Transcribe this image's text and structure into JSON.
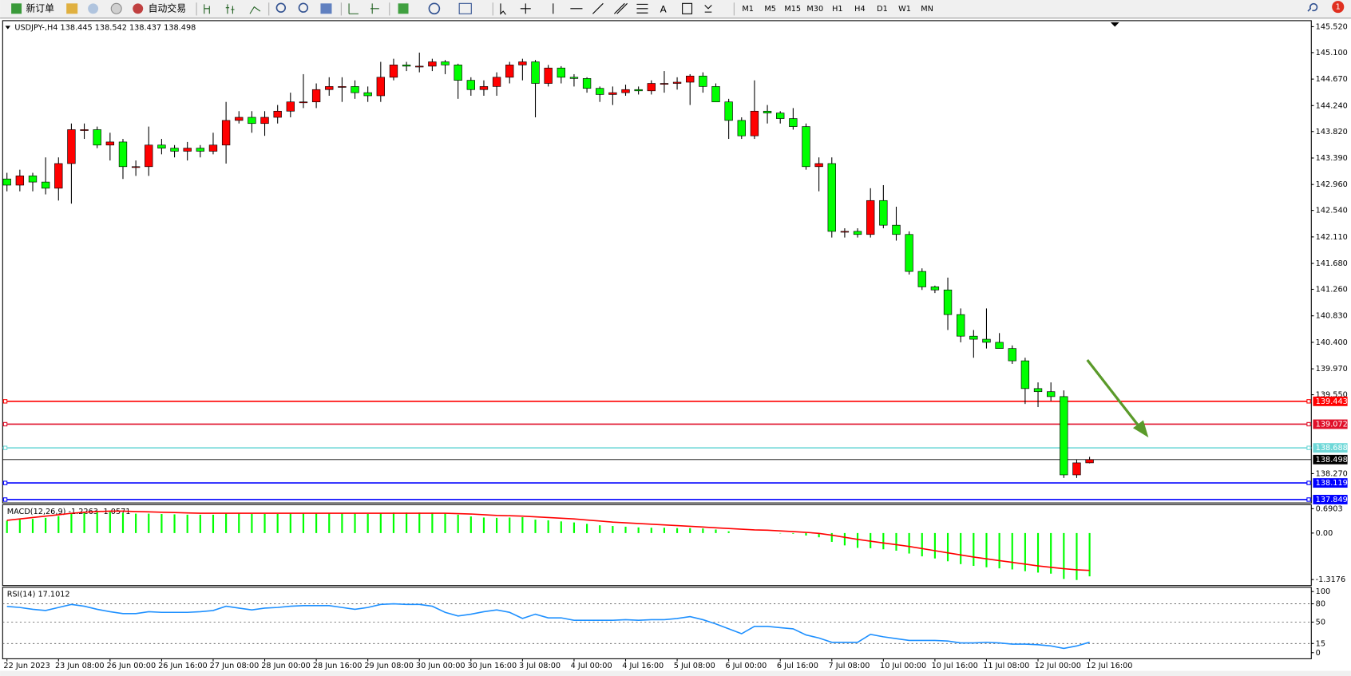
{
  "toolbar": {
    "new_order": "新订单",
    "auto_trading": "自动交易",
    "timeframes": [
      "M1",
      "M5",
      "M15",
      "M30",
      "H1",
      "H4",
      "D1",
      "W1",
      "MN"
    ],
    "notifications": "1"
  },
  "chart_data": [
    {
      "type": "candlestick",
      "title": "USDJPY-,H4  138.445 138.542 138.437 138.498",
      "categories": [
        "22 Jun 2023",
        null,
        null,
        null,
        "23 Jun 08:00",
        null,
        null,
        null,
        "26 Jun 00:00",
        null,
        null,
        null,
        "26 Jun 16:00",
        null,
        null,
        null,
        "27 Jun 08:00",
        null,
        null,
        null,
        "28 Jun 00:00",
        null,
        null,
        null,
        "28 Jun 16:00",
        null,
        null,
        null,
        "29 Jun 08:00",
        null,
        null,
        null,
        "30 Jun 00:00",
        null,
        null,
        null,
        "30 Jun 16:00",
        null,
        null,
        null,
        "3 Jul 08:00",
        null,
        null,
        null,
        "4 Jul 00:00",
        null,
        null,
        null,
        "4 Jul 16:00",
        null,
        null,
        null,
        "5 Jul 08:00",
        null,
        null,
        null,
        "6 Jul 00:00",
        null,
        null,
        null,
        "6 Jul 16:00",
        null,
        null,
        null,
        "7 Jul 08:00",
        null,
        null,
        null,
        "10 Jul 00:00",
        null,
        null,
        null,
        "10 Jul 16:00",
        null,
        null,
        null,
        "11 Jul 08:00",
        null,
        null,
        null,
        "12 Jul 00:00",
        null,
        null,
        null,
        "12 Jul 16:00"
      ],
      "open": [
        143.05,
        142.95,
        143.1,
        143.0,
        142.9,
        143.3,
        143.85,
        143.85,
        143.6,
        143.65,
        143.25,
        143.25,
        143.6,
        143.55,
        143.5,
        143.55,
        143.5,
        143.6,
        144.0,
        144.05,
        143.95,
        144.05,
        144.15,
        144.3,
        144.3,
        144.5,
        144.55,
        144.55,
        144.45,
        144.4,
        144.7,
        144.9,
        144.88,
        144.88,
        144.95,
        144.9,
        144.65,
        144.5,
        144.55,
        144.7,
        144.9,
        144.95,
        144.6,
        144.85,
        144.7,
        144.68,
        144.52,
        144.42,
        144.45,
        144.5,
        144.48,
        144.6,
        144.6,
        144.62,
        144.72,
        144.55,
        144.3,
        144.0,
        143.75,
        144.15,
        144.12,
        144.03,
        143.9,
        143.25,
        143.3,
        142.2,
        142.2,
        142.15,
        142.7,
        142.3,
        142.15,
        141.55,
        141.3,
        141.25,
        140.85,
        140.5,
        140.45,
        140.4,
        140.3,
        140.1,
        139.65,
        139.6,
        139.52,
        138.25,
        138.445
      ],
      "high": [
        143.15,
        143.2,
        143.15,
        143.4,
        143.4,
        143.95,
        143.95,
        143.9,
        143.8,
        143.7,
        143.35,
        143.9,
        143.7,
        143.6,
        143.65,
        143.6,
        143.8,
        144.3,
        144.15,
        144.15,
        144.15,
        144.25,
        144.45,
        144.75,
        144.6,
        144.7,
        144.7,
        144.65,
        144.55,
        144.95,
        145.0,
        144.95,
        145.1,
        145.0,
        144.98,
        144.92,
        144.7,
        144.65,
        144.78,
        144.95,
        145.0,
        144.98,
        144.9,
        144.88,
        144.75,
        144.7,
        144.55,
        144.55,
        144.58,
        144.55,
        144.65,
        144.8,
        144.7,
        144.75,
        144.78,
        144.6,
        144.35,
        144.05,
        144.65,
        144.25,
        144.15,
        144.2,
        143.95,
        143.4,
        143.4,
        142.25,
        142.25,
        142.9,
        142.95,
        142.6,
        142.2,
        141.6,
        141.32,
        141.45,
        140.95,
        140.6,
        140.95,
        140.55,
        140.35,
        140.15,
        139.75,
        139.75,
        139.62,
        138.5,
        138.542
      ],
      "low": [
        142.85,
        142.85,
        142.85,
        142.8,
        142.7,
        142.65,
        143.7,
        143.55,
        143.35,
        143.05,
        143.1,
        143.1,
        143.45,
        143.4,
        143.35,
        143.4,
        143.45,
        143.3,
        143.95,
        143.8,
        143.75,
        143.95,
        144.05,
        144.2,
        144.2,
        144.4,
        144.3,
        144.35,
        144.3,
        144.3,
        144.65,
        144.8,
        144.78,
        144.8,
        144.75,
        144.35,
        144.4,
        144.4,
        144.4,
        144.6,
        144.65,
        144.05,
        144.55,
        144.6,
        144.55,
        144.45,
        144.3,
        144.25,
        144.4,
        144.42,
        144.42,
        144.45,
        144.5,
        144.25,
        144.45,
        144.3,
        143.7,
        143.7,
        143.7,
        143.95,
        143.95,
        143.85,
        143.2,
        142.85,
        142.1,
        142.1,
        142.1,
        142.1,
        142.25,
        142.05,
        141.5,
        141.25,
        141.2,
        140.6,
        140.4,
        140.15,
        140.3,
        140.3,
        140.05,
        139.4,
        139.35,
        139.45,
        138.2,
        138.2,
        138.437
      ],
      "close": [
        142.95,
        143.1,
        143.0,
        142.9,
        143.3,
        143.85,
        143.85,
        143.6,
        143.65,
        143.25,
        143.25,
        143.6,
        143.55,
        143.5,
        143.55,
        143.5,
        143.6,
        144.0,
        144.05,
        143.95,
        144.05,
        144.15,
        144.3,
        144.3,
        144.5,
        144.55,
        144.55,
        144.45,
        144.4,
        144.7,
        144.9,
        144.88,
        144.88,
        144.95,
        144.9,
        144.65,
        144.5,
        144.55,
        144.7,
        144.9,
        144.95,
        144.6,
        144.85,
        144.7,
        144.68,
        144.52,
        144.42,
        144.45,
        144.5,
        144.48,
        144.6,
        144.6,
        144.62,
        144.72,
        144.55,
        144.3,
        144.0,
        143.75,
        144.15,
        144.12,
        144.03,
        143.9,
        143.25,
        143.3,
        142.2,
        142.2,
        142.15,
        142.7,
        142.3,
        142.15,
        141.55,
        141.3,
        141.25,
        140.85,
        140.5,
        140.45,
        140.4,
        140.3,
        140.1,
        139.65,
        139.6,
        139.52,
        138.25,
        138.445,
        138.498
      ],
      "up_color": "#ff0000",
      "down_color": "#00ff00",
      "ylim": [
        137.795,
        145.618
      ],
      "yticks": [
        {
          "value": 145.52,
          "label": "145.520"
        },
        {
          "value": 145.1,
          "label": "145.100"
        },
        {
          "value": 144.67,
          "label": "144.670"
        },
        {
          "value": 144.24,
          "label": "144.240"
        },
        {
          "value": 143.82,
          "label": "143.820"
        },
        {
          "value": 143.39,
          "label": "143.390"
        },
        {
          "value": 142.96,
          "label": "142.960"
        },
        {
          "value": 142.54,
          "label": "142.540"
        },
        {
          "value": 142.11,
          "label": "142.110"
        },
        {
          "value": 141.68,
          "label": "141.680"
        },
        {
          "value": 141.26,
          "label": "141.260"
        },
        {
          "value": 140.83,
          "label": "140.830"
        },
        {
          "value": 140.4,
          "label": "140.400"
        },
        {
          "value": 139.97,
          "label": "139.970"
        },
        {
          "value": 139.55,
          "label": "139.550"
        },
        {
          "value": 138.27,
          "label": "138.270"
        }
      ],
      "levels": [
        {
          "value": 139.443,
          "color": "#ff0000"
        },
        {
          "value": 139.072,
          "color": "#e0102a"
        },
        {
          "value": 138.688,
          "color": "#6fd8d8"
        },
        {
          "value": 138.498,
          "color": "#000000"
        },
        {
          "value": 138.119,
          "color": "#0000ff"
        },
        {
          "value": 137.849,
          "color": "#0000ff"
        }
      ]
    },
    {
      "type": "macd",
      "title": "MACD(12,26,9) -1.2263 -1.0571",
      "series": [
        {
          "style": "bar",
          "color": "#00ff00",
          "values": [
            0.35,
            0.38,
            0.4,
            0.43,
            0.48,
            0.55,
            0.6,
            0.62,
            0.6,
            0.57,
            0.55,
            0.55,
            0.54,
            0.53,
            0.52,
            0.52,
            0.52,
            0.55,
            0.55,
            0.54,
            0.54,
            0.54,
            0.55,
            0.55,
            0.56,
            0.56,
            0.56,
            0.55,
            0.54,
            0.56,
            0.58,
            0.58,
            0.58,
            0.58,
            0.57,
            0.52,
            0.47,
            0.44,
            0.43,
            0.44,
            0.45,
            0.38,
            0.36,
            0.33,
            0.3,
            0.26,
            0.22,
            0.2,
            0.18,
            0.16,
            0.15,
            0.15,
            0.14,
            0.14,
            0.13,
            0.1,
            0.05,
            0.0,
            0.0,
            0.0,
            -0.01,
            -0.02,
            -0.07,
            -0.12,
            -0.25,
            -0.35,
            -0.42,
            -0.43,
            -0.46,
            -0.5,
            -0.58,
            -0.66,
            -0.72,
            -0.8,
            -0.88,
            -0.93,
            -0.97,
            -1.0,
            -1.03,
            -1.08,
            -1.12,
            -1.15,
            -1.3,
            -1.33,
            -1.2263
          ]
        },
        {
          "style": "line",
          "color": "#ff0000",
          "values": [
            0.36,
            0.4,
            0.44,
            0.48,
            0.52,
            0.56,
            0.59,
            0.61,
            0.62,
            0.62,
            0.61,
            0.6,
            0.59,
            0.58,
            0.57,
            0.56,
            0.56,
            0.56,
            0.56,
            0.56,
            0.56,
            0.56,
            0.56,
            0.56,
            0.56,
            0.56,
            0.56,
            0.56,
            0.56,
            0.56,
            0.56,
            0.56,
            0.56,
            0.56,
            0.56,
            0.55,
            0.54,
            0.52,
            0.5,
            0.49,
            0.48,
            0.46,
            0.44,
            0.42,
            0.4,
            0.37,
            0.34,
            0.31,
            0.29,
            0.27,
            0.25,
            0.23,
            0.21,
            0.19,
            0.17,
            0.15,
            0.13,
            0.11,
            0.09,
            0.08,
            0.06,
            0.04,
            0.02,
            -0.01,
            -0.06,
            -0.12,
            -0.18,
            -0.23,
            -0.28,
            -0.33,
            -0.38,
            -0.44,
            -0.5,
            -0.56,
            -0.62,
            -0.68,
            -0.73,
            -0.78,
            -0.83,
            -0.88,
            -0.93,
            -0.97,
            -1.01,
            -1.04,
            -1.0571
          ]
        }
      ],
      "ylim": [
        -1.488,
        0.805
      ],
      "yticks": [
        0.6903,
        {
          "value": 0,
          "label": "0.00"
        },
        -1.3176
      ]
    },
    {
      "type": "line",
      "title": "RSI(14) 17.1012",
      "series": [
        {
          "style": "line",
          "color": "#1e90ff",
          "values": [
            75.7,
            74,
            71,
            69,
            74,
            79,
            76,
            71,
            67,
            64,
            64,
            67,
            66,
            66,
            66,
            67,
            69,
            76,
            73,
            70,
            73,
            74,
            76,
            77,
            77,
            77,
            74,
            71,
            74,
            79,
            80,
            79,
            79,
            76,
            66,
            60,
            63,
            67,
            70,
            66,
            56,
            63,
            57,
            57,
            53,
            53,
            53,
            53,
            54,
            53,
            54,
            54,
            56,
            59,
            54,
            47,
            39,
            31,
            43,
            43,
            41,
            39,
            29,
            24,
            17,
            17,
            17,
            30,
            26,
            23,
            20,
            20,
            20,
            19,
            16,
            16,
            17,
            16,
            14,
            14,
            13,
            11,
            7,
            11,
            17.1012
          ]
        }
      ],
      "ylim": [
        -10,
        107
      ],
      "yticks": [
        100,
        80,
        50,
        15,
        0
      ],
      "reference_lines": [
        80,
        50,
        15
      ]
    }
  ]
}
